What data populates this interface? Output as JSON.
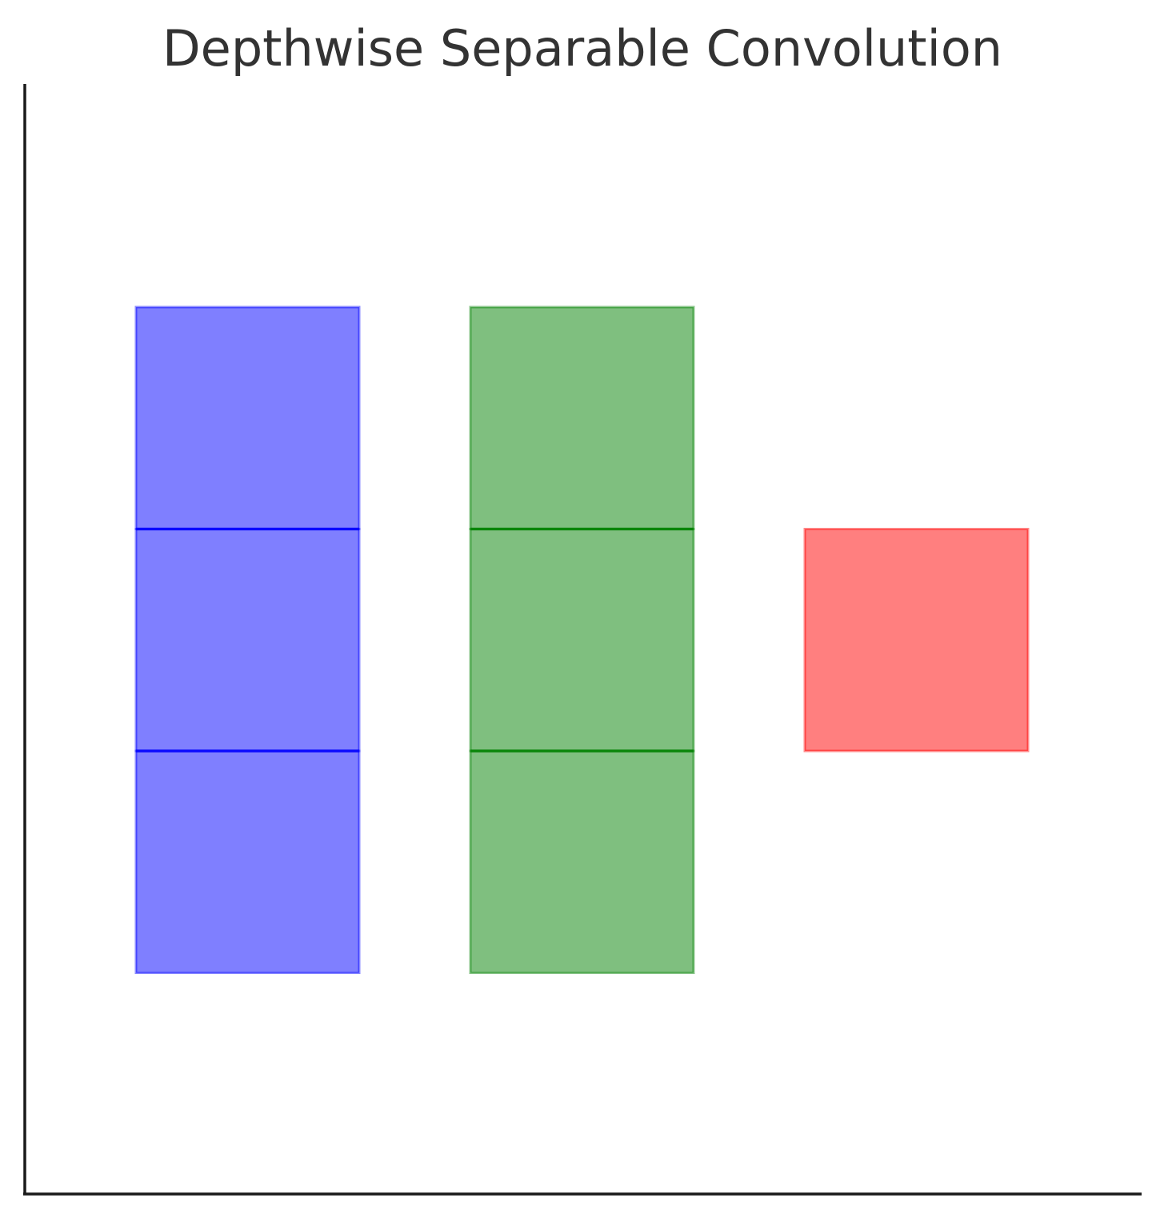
{
  "title": "Depthwise Separable Convolution",
  "colors": {
    "axis": "#1a1a1a",
    "title": "#333333"
  },
  "stacks": [
    {
      "name": "blue-stack",
      "fill": "#0000ff",
      "edge": "#0000ff",
      "fill_opacity": 0.5,
      "cells": 3,
      "row_start": 1
    },
    {
      "name": "green-stack",
      "fill": "#008000",
      "edge": "#008000",
      "fill_opacity": 0.5,
      "cells": 3,
      "row_start": 1
    },
    {
      "name": "red-stack",
      "fill": "#ff0000",
      "edge": "#ff0000",
      "fill_opacity": 0.5,
      "cells": 1,
      "row_start": 2
    }
  ]
}
